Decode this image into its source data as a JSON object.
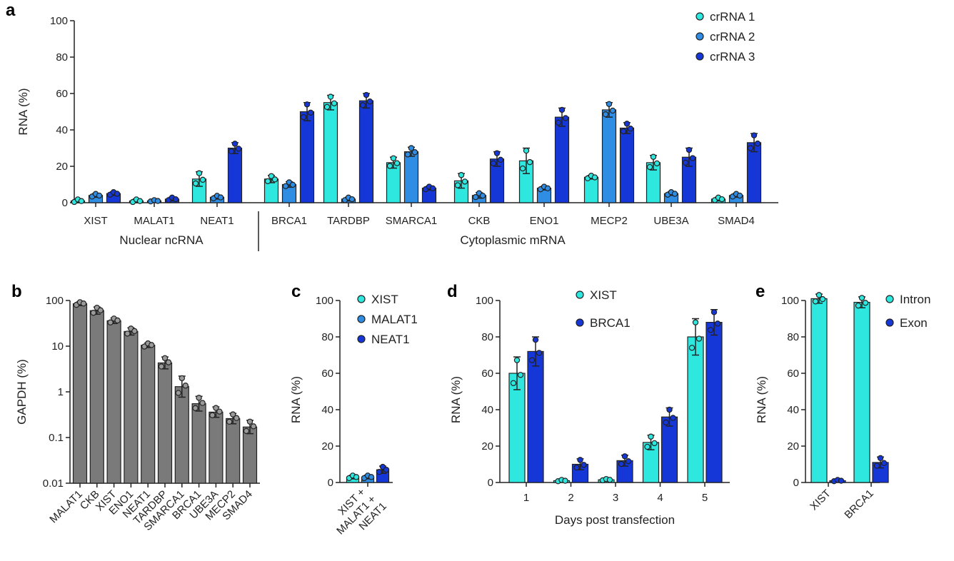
{
  "colors": {
    "cyan": "#2ee8e0",
    "mid_blue": "#2f8de4",
    "dark_blue": "#1537d8",
    "gray": "#7a7a7a",
    "axis": "#222222"
  },
  "chart_data": [
    {
      "panel": "a",
      "type": "bar",
      "ylabel": "RNA (%)",
      "ylim": [
        0,
        100
      ],
      "yticks": [
        0,
        20,
        40,
        60,
        80,
        100
      ],
      "categories": [
        "XIST",
        "MALAT1",
        "NEAT1",
        "BRCA1",
        "TARDBP",
        "SMARCA1",
        "CKB",
        "ENO1",
        "MECP2",
        "UBE3A",
        "SMAD4"
      ],
      "series": [
        {
          "name": "crRNA 1",
          "values": [
            1,
            1,
            13,
            13,
            55,
            22,
            12,
            23,
            14,
            22,
            2
          ],
          "errors": [
            1,
            1,
            4,
            2,
            4,
            3,
            4,
            7,
            1,
            4,
            1
          ]
        },
        {
          "name": "crRNA 2",
          "values": [
            4,
            1,
            3,
            10,
            2,
            28,
            4,
            8,
            51,
            5,
            4
          ],
          "errors": [
            1,
            0.5,
            1,
            1.5,
            1,
            2.5,
            1.5,
            1,
            4,
            1,
            1
          ]
        },
        {
          "name": "crRNA 3",
          "values": [
            5,
            2,
            30,
            50,
            56,
            8,
            24,
            47,
            41,
            25,
            33
          ],
          "errors": [
            1,
            1,
            3,
            5,
            4,
            1,
            4,
            5,
            3,
            5,
            5
          ]
        }
      ],
      "groups": [
        {
          "label": "Nuclear ncRNA",
          "from": 0,
          "to": 2
        },
        {
          "label": "Cytoplasmic mRNA",
          "from": 3,
          "to": 10
        }
      ],
      "legend_position": "top-right"
    },
    {
      "panel": "b",
      "type": "bar",
      "scale": "log",
      "ylabel": "GAPDH (%)",
      "ylim": [
        0.01,
        100
      ],
      "yticks": [
        0.01,
        0.1,
        1,
        10,
        100
      ],
      "ytick_labels": [
        "0.01",
        "0.1",
        "1",
        "10",
        "100"
      ],
      "categories": [
        "MALAT1",
        "CKB",
        "XIST",
        "ENO1",
        "NEAT1",
        "TARDBP",
        "SMARCA1",
        "BRCA1",
        "UBE3A",
        "MECP2",
        "SMAD4"
      ],
      "series": [
        {
          "name": "GAPDH",
          "values": [
            85,
            60,
            36,
            21,
            10.5,
            4.3,
            1.3,
            0.55,
            0.36,
            0.26,
            0.17
          ],
          "errors_factor": [
            1.1,
            1.2,
            1.15,
            1.2,
            1.12,
            1.35,
            1.7,
            1.45,
            1.3,
            1.3,
            1.4
          ]
        }
      ]
    },
    {
      "panel": "c",
      "type": "bar",
      "ylabel": "RNA (%)",
      "ylim": [
        0,
        100
      ],
      "yticks": [
        0,
        20,
        40,
        60,
        80,
        100
      ],
      "category_label_lines": [
        "XIST +",
        "MALAT1 +",
        "NEAT1"
      ],
      "series": [
        {
          "name": "XIST",
          "values": [
            3
          ],
          "errors": [
            1
          ]
        },
        {
          "name": "MALAT1",
          "values": [
            3
          ],
          "errors": [
            1
          ]
        },
        {
          "name": "NEAT1",
          "values": [
            7
          ],
          "errors": [
            2
          ]
        }
      ],
      "legend_position": "top-right"
    },
    {
      "panel": "d",
      "type": "bar",
      "xlabel": "Days post transfection",
      "ylabel": "RNA (%)",
      "ylim": [
        0,
        100
      ],
      "yticks": [
        0,
        20,
        40,
        60,
        80,
        100
      ],
      "categories": [
        "1",
        "2",
        "3",
        "4",
        "5"
      ],
      "series": [
        {
          "name": "XIST",
          "values": [
            60,
            1,
            1.5,
            22,
            80
          ],
          "errors": [
            9,
            0.5,
            0.5,
            4,
            10
          ]
        },
        {
          "name": "BRCA1",
          "values": [
            72,
            10,
            12,
            36,
            88
          ],
          "errors": [
            8,
            3,
            3,
            5,
            7
          ]
        }
      ],
      "legend_position": "top"
    },
    {
      "panel": "e",
      "type": "bar",
      "ylabel": "RNA (%)",
      "ylim": [
        0,
        100
      ],
      "yticks": [
        0,
        20,
        40,
        60,
        80,
        100
      ],
      "categories": [
        "XIST",
        "BRCA1"
      ],
      "series": [
        {
          "name": "Intron",
          "values": [
            101,
            99
          ],
          "errors": [
            2.5,
            3
          ]
        },
        {
          "name": "Exon",
          "values": [
            1,
            11
          ],
          "errors": [
            0.5,
            3
          ]
        }
      ],
      "legend_position": "top-right"
    }
  ]
}
